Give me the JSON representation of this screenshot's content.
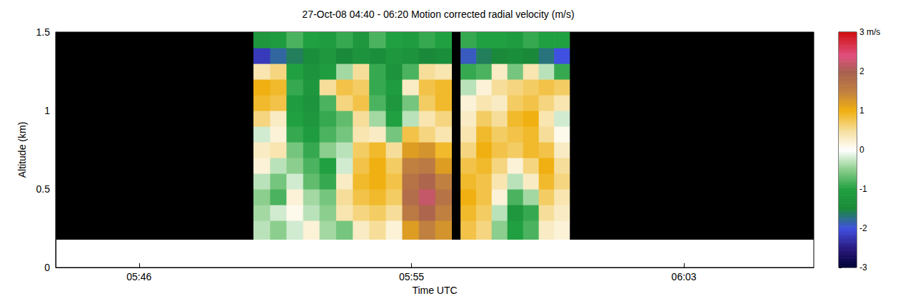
{
  "chart_data": {
    "type": "heatmap",
    "title": "27-Oct-08 04:40 - 06:20 Motion corrected radial velocity (m/s)",
    "x_label": "Time UTC",
    "y_label": "Altitude (km)",
    "xlim": [
      343.9,
      367.55
    ],
    "xticks": [
      {
        "value": 346.5,
        "label": "05:46"
      },
      {
        "value": 355,
        "label": "05:55"
      },
      {
        "value": 363.5,
        "label": "06:03"
      }
    ],
    "ylim": [
      0,
      1.5
    ],
    "yticks": [
      0,
      0.5,
      1,
      1.5
    ],
    "grid": false,
    "x_edges": [
      343.9,
      350.07,
      350.59,
      351.1,
      351.62,
      352.13,
      352.65,
      353.17,
      353.68,
      354.2,
      354.71,
      355.23,
      355.74,
      356.26,
      356.53,
      357.02,
      357.5,
      357.99,
      358.48,
      358.97,
      359.45,
      359.94,
      367.55
    ],
    "y_edges": [
      0.18,
      0.3,
      0.4,
      0.5,
      0.6,
      0.7,
      0.8,
      0.9,
      1.0,
      1.1,
      1.2,
      1.3,
      1.4,
      1.5
    ],
    "cells": [
      [
        null,
        -0.3,
        -0.5,
        -0.2,
        0.2,
        -0.4,
        -0.6,
        0.3,
        0.5,
        0.2,
        1.2,
        1.5,
        1.3,
        null,
        0.8,
        0.6,
        -0.5,
        -1.0,
        -0.8,
        0.3,
        0.2,
        null
      ],
      [
        null,
        -0.4,
        -0.2,
        0.1,
        -0.3,
        -0.5,
        0.4,
        0.6,
        0.7,
        0.5,
        1.6,
        1.9,
        1.5,
        null,
        0.9,
        0.7,
        -0.3,
        -1.2,
        -0.9,
        0.5,
        0.3,
        null
      ],
      [
        null,
        -0.5,
        -0.8,
        0.2,
        -0.4,
        -0.6,
        0.5,
        0.8,
        0.9,
        0.7,
        1.8,
        2.2,
        1.7,
        null,
        1.0,
        0.8,
        0.2,
        -0.8,
        -0.4,
        0.7,
        0.4,
        null
      ],
      [
        null,
        -0.3,
        -0.6,
        -0.2,
        -0.7,
        -0.9,
        0.3,
        0.9,
        1.0,
        0.8,
        1.7,
        1.9,
        1.5,
        null,
        0.9,
        0.8,
        0.4,
        -0.3,
        0.3,
        0.9,
        0.6,
        null
      ],
      [
        null,
        0.2,
        -0.3,
        -0.5,
        -0.8,
        -1.0,
        -0.2,
        0.8,
        1.0,
        0.7,
        1.5,
        1.6,
        1.2,
        null,
        0.8,
        0.9,
        0.6,
        0.2,
        0.6,
        1.0,
        0.5,
        null
      ],
      [
        null,
        0.3,
        0.4,
        -0.6,
        -0.9,
        -0.5,
        -0.3,
        0.7,
        0.9,
        0.5,
        1.2,
        1.3,
        0.9,
        null,
        0.6,
        1.0,
        0.8,
        0.7,
        0.9,
        0.8,
        0.3,
        null
      ],
      [
        null,
        -0.2,
        0.2,
        -0.9,
        -1.1,
        -0.8,
        -0.6,
        0.4,
        0.3,
        -0.6,
        0.8,
        0.6,
        0.4,
        null,
        0.4,
        0.9,
        0.7,
        0.8,
        0.9,
        0.5,
        0.1,
        null
      ],
      [
        null,
        0.6,
        0.3,
        -1.0,
        -1.2,
        -0.9,
        -0.7,
        0.5,
        -0.4,
        -1.0,
        -0.3,
        0.4,
        0.6,
        null,
        0.3,
        0.7,
        0.5,
        0.9,
        1.0,
        0.4,
        -0.2,
        null
      ],
      [
        null,
        0.9,
        0.8,
        -1.1,
        -1.3,
        -0.8,
        0.6,
        0.8,
        -0.8,
        -1.2,
        -0.6,
        0.7,
        0.9,
        null,
        0.2,
        0.4,
        0.3,
        0.7,
        0.8,
        0.6,
        0.4,
        null
      ],
      [
        null,
        1.0,
        0.9,
        -0.9,
        -1.2,
        0.5,
        0.8,
        0.7,
        -0.9,
        -1.1,
        0.3,
        0.8,
        0.9,
        null,
        -0.3,
        0.2,
        0.5,
        0.6,
        0.7,
        0.8,
        0.7,
        null
      ],
      [
        null,
        0.4,
        0.6,
        -1.0,
        -1.3,
        -1.1,
        -0.4,
        0.5,
        -0.9,
        -1.3,
        -0.8,
        0.5,
        0.4,
        null,
        -0.9,
        -0.8,
        0.3,
        -0.6,
        0.4,
        -0.3,
        -0.9,
        null
      ],
      [
        null,
        -2.2,
        -1.8,
        -1.6,
        -1.4,
        -1.2,
        -1.5,
        -1.3,
        -1.4,
        -1.2,
        -1.3,
        -1.5,
        -1.4,
        null,
        -1.9,
        -1.6,
        -1.5,
        -1.4,
        -1.5,
        -1.7,
        -2.0,
        null
      ],
      [
        null,
        -1.2,
        -1.1,
        -0.8,
        -1.0,
        -1.1,
        -0.9,
        -1.2,
        -0.8,
        -1.0,
        -1.1,
        -0.9,
        -1.0,
        null,
        -0.9,
        -1.0,
        -1.0,
        -1.1,
        -0.9,
        -1.0,
        -1.0,
        null
      ]
    ],
    "colorbar": {
      "range": [
        -3,
        3
      ],
      "ticks": [
        {
          "value": 3,
          "label": "3 m/s"
        },
        2,
        1,
        0,
        -1,
        -2,
        -3
      ]
    }
  }
}
